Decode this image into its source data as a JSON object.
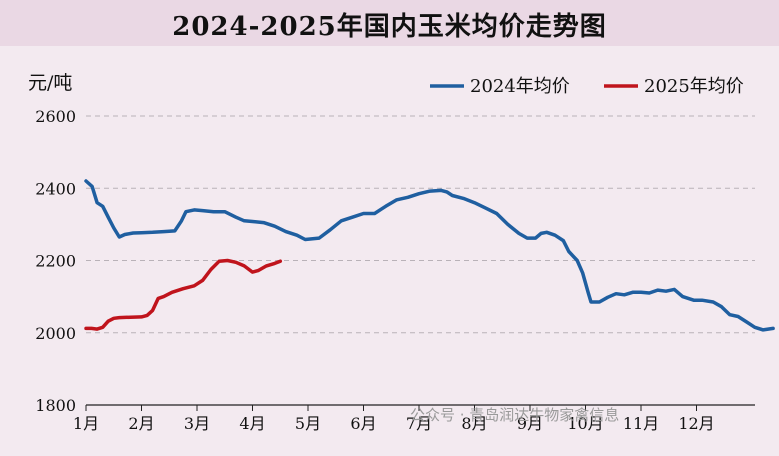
{
  "chart_data": {
    "type": "line",
    "title": "2024-2025年国内玉米均价走势图",
    "ylabel": "元/吨",
    "xlabel": "",
    "ylim": [
      1800,
      2600
    ],
    "yticks": [
      1800,
      2000,
      2200,
      2400,
      2600
    ],
    "xlim": [
      0,
      12
    ],
    "xticks": [
      {
        "x": 0,
        "label": "1月"
      },
      {
        "x": 1,
        "label": "2月"
      },
      {
        "x": 2,
        "label": "3月"
      },
      {
        "x": 3,
        "label": "4月"
      },
      {
        "x": 4,
        "label": "5月"
      },
      {
        "x": 5,
        "label": "6月"
      },
      {
        "x": 6,
        "label": "7月"
      },
      {
        "x": 7,
        "label": "8月"
      },
      {
        "x": 8,
        "label": "9月"
      },
      {
        "x": 9,
        "label": "10月"
      },
      {
        "x": 10,
        "label": "11月"
      },
      {
        "x": 11,
        "label": "12月"
      }
    ],
    "grid": "horizontal dashed",
    "legend_position": "top-right",
    "series": [
      {
        "name": "2024年均价",
        "color": "#1f5fa0",
        "points": [
          [
            0.0,
            2420
          ],
          [
            0.11,
            2405
          ],
          [
            0.2,
            2360
          ],
          [
            0.3,
            2350
          ],
          [
            0.4,
            2320
          ],
          [
            0.5,
            2290
          ],
          [
            0.6,
            2265
          ],
          [
            0.7,
            2272
          ],
          [
            0.85,
            2276
          ],
          [
            1.0,
            2277
          ],
          [
            1.2,
            2278
          ],
          [
            1.4,
            2280
          ],
          [
            1.6,
            2282
          ],
          [
            1.72,
            2310
          ],
          [
            1.8,
            2335
          ],
          [
            1.95,
            2340
          ],
          [
            2.1,
            2338
          ],
          [
            2.3,
            2335
          ],
          [
            2.5,
            2335
          ],
          [
            2.7,
            2320
          ],
          [
            2.85,
            2310
          ],
          [
            3.0,
            2308
          ],
          [
            3.2,
            2305
          ],
          [
            3.4,
            2295
          ],
          [
            3.6,
            2280
          ],
          [
            3.8,
            2270
          ],
          [
            3.95,
            2258
          ],
          [
            4.2,
            2262
          ],
          [
            4.4,
            2285
          ],
          [
            4.6,
            2310
          ],
          [
            4.8,
            2320
          ],
          [
            5.0,
            2330
          ],
          [
            5.2,
            2330
          ],
          [
            5.4,
            2350
          ],
          [
            5.6,
            2368
          ],
          [
            5.8,
            2375
          ],
          [
            6.0,
            2385
          ],
          [
            6.2,
            2392
          ],
          [
            6.4,
            2394
          ],
          [
            6.5,
            2390
          ],
          [
            6.6,
            2380
          ],
          [
            6.8,
            2372
          ],
          [
            7.0,
            2360
          ],
          [
            7.2,
            2345
          ],
          [
            7.4,
            2330
          ],
          [
            7.6,
            2300
          ],
          [
            7.8,
            2275
          ],
          [
            7.95,
            2262
          ],
          [
            8.1,
            2262
          ],
          [
            8.2,
            2275
          ],
          [
            8.3,
            2278
          ],
          [
            8.45,
            2270
          ],
          [
            8.6,
            2255
          ],
          [
            8.7,
            2225
          ],
          [
            8.85,
            2200
          ],
          [
            8.95,
            2165
          ],
          [
            9.05,
            2110
          ],
          [
            9.1,
            2085
          ],
          [
            9.25,
            2085
          ],
          [
            9.4,
            2098
          ],
          [
            9.55,
            2108
          ],
          [
            9.7,
            2105
          ],
          [
            9.85,
            2112
          ],
          [
            10.0,
            2112
          ],
          [
            10.15,
            2110
          ],
          [
            10.3,
            2118
          ],
          [
            10.45,
            2115
          ],
          [
            10.6,
            2120
          ],
          [
            10.75,
            2100
          ],
          [
            10.95,
            2090
          ],
          [
            11.1,
            2090
          ],
          [
            11.3,
            2085
          ],
          [
            11.45,
            2072
          ],
          [
            11.6,
            2050
          ],
          [
            11.75,
            2045
          ],
          [
            11.9,
            2030
          ],
          [
            12.05,
            2015
          ],
          [
            12.2,
            2008
          ],
          [
            12.38,
            2012
          ]
        ]
      },
      {
        "name": "2025年均价",
        "color": "#c0141c",
        "points": [
          [
            0.0,
            2012
          ],
          [
            0.1,
            2012
          ],
          [
            0.2,
            2010
          ],
          [
            0.3,
            2015
          ],
          [
            0.4,
            2032
          ],
          [
            0.5,
            2040
          ],
          [
            0.6,
            2042
          ],
          [
            0.8,
            2043
          ],
          [
            1.0,
            2044
          ],
          [
            1.1,
            2048
          ],
          [
            1.2,
            2062
          ],
          [
            1.3,
            2095
          ],
          [
            1.4,
            2100
          ],
          [
            1.55,
            2112
          ],
          [
            1.75,
            2122
          ],
          [
            1.95,
            2130
          ],
          [
            2.1,
            2145
          ],
          [
            2.25,
            2175
          ],
          [
            2.4,
            2198
          ],
          [
            2.55,
            2200
          ],
          [
            2.7,
            2195
          ],
          [
            2.85,
            2185
          ],
          [
            3.0,
            2168
          ],
          [
            3.1,
            2172
          ],
          [
            3.25,
            2185
          ],
          [
            3.4,
            2192
          ],
          [
            3.5,
            2198
          ]
        ]
      }
    ]
  },
  "watermark": "公众号 · 青岛润达牛物家禽信息"
}
